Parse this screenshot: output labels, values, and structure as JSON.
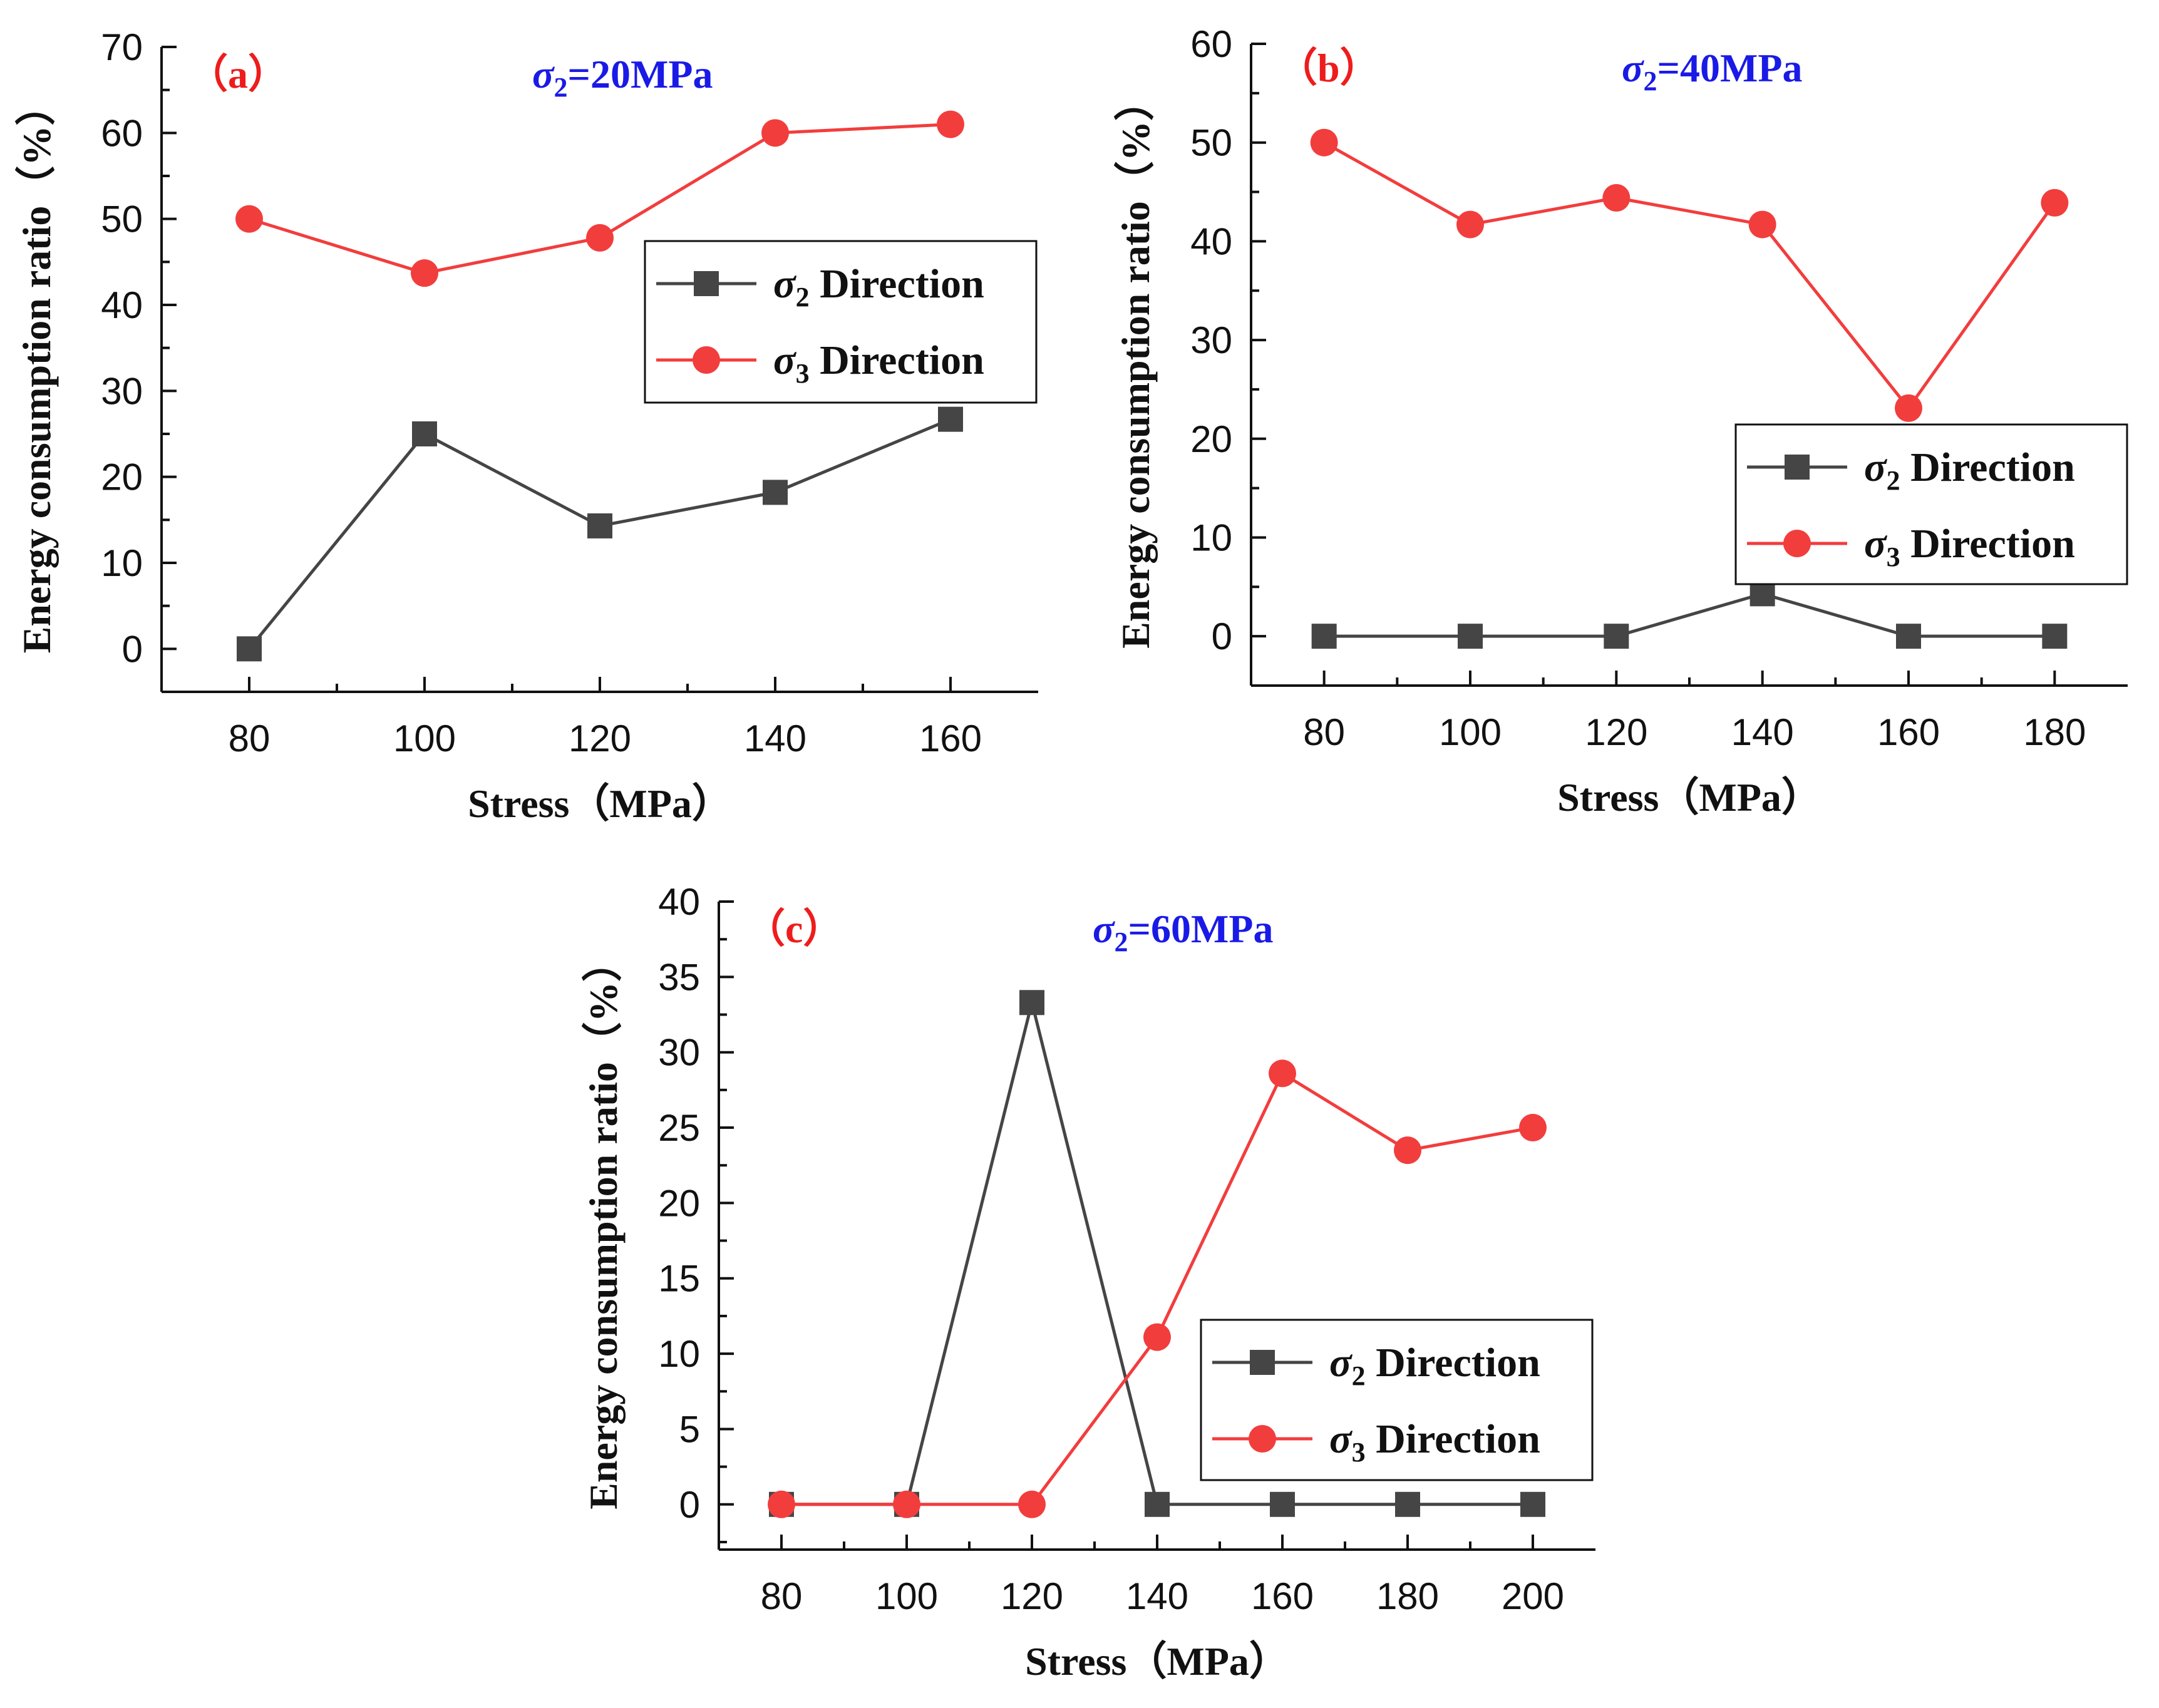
{
  "colors": {
    "s2": "#454545",
    "s3": "#f23d3d",
    "panel_label": "#ee1c1c",
    "condition": "#1a1ae6",
    "axis": "#111111"
  },
  "chart_data": [
    {
      "type": "line",
      "panel_label": "（a）",
      "condition": {
        "symbol": "σ",
        "sub": "2",
        "rest": "=20MPa"
      },
      "xlabel": "Stress（MPa）",
      "ylabel": "Energy consumption ratio（%）",
      "xlim": [
        70,
        170
      ],
      "ylim": [
        -5,
        70
      ],
      "xticks": [
        80,
        100,
        120,
        140,
        160
      ],
      "yticks": [
        0,
        10,
        20,
        30,
        40,
        50,
        60,
        70
      ],
      "legend_position": "center-right",
      "series": [
        {
          "name": "σ2 Direction",
          "symbol": "σ",
          "sub": "2",
          "label": "Direction",
          "marker": "square",
          "color_key": "s2",
          "x": [
            80,
            100,
            120,
            140,
            160
          ],
          "values": [
            0,
            25,
            14.3,
            18.2,
            26.7
          ]
        },
        {
          "name": "σ3 Direction",
          "symbol": "σ",
          "sub": "3",
          "label": "Direction",
          "marker": "circle",
          "color_key": "s3",
          "x": [
            80,
            100,
            120,
            140,
            160
          ],
          "values": [
            50,
            43.7,
            47.8,
            60,
            61
          ]
        }
      ]
    },
    {
      "type": "line",
      "panel_label": "（b）",
      "condition": {
        "symbol": "σ",
        "sub": "2",
        "rest": "=40MPa"
      },
      "xlabel": "Stress（MPa）",
      "ylabel": "Energy consumption ratio（%）",
      "xlim": [
        70,
        190
      ],
      "ylim": [
        -5,
        60
      ],
      "xticks": [
        80,
        100,
        120,
        140,
        160,
        180
      ],
      "yticks": [
        0,
        10,
        20,
        30,
        40,
        50,
        60
      ],
      "legend_position": "center-right",
      "series": [
        {
          "name": "σ2 Direction",
          "symbol": "σ",
          "sub": "2",
          "label": "Direction",
          "marker": "square",
          "color_key": "s2",
          "x": [
            80,
            100,
            120,
            140,
            160,
            180
          ],
          "values": [
            0,
            0,
            0,
            4.3,
            0,
            0
          ]
        },
        {
          "name": "σ3 Direction",
          "symbol": "σ",
          "sub": "3",
          "label": "Direction",
          "marker": "circle",
          "color_key": "s3",
          "x": [
            80,
            100,
            120,
            140,
            160,
            180
          ],
          "values": [
            50,
            41.7,
            44.4,
            41.7,
            23.1,
            43.9
          ]
        }
      ]
    },
    {
      "type": "line",
      "panel_label": "（c）",
      "condition": {
        "symbol": "σ",
        "sub": "2",
        "rest": "=60MPa"
      },
      "xlabel": "Stress（MPa）",
      "ylabel": "Energy consumption ratio（%）",
      "xlim": [
        70,
        210
      ],
      "ylim": [
        -3,
        40
      ],
      "xticks": [
        80,
        100,
        120,
        140,
        160,
        180,
        200
      ],
      "yticks": [
        0,
        5,
        10,
        15,
        20,
        25,
        30,
        35,
        40
      ],
      "legend_position": "lower-right",
      "series": [
        {
          "name": "σ2 Direction",
          "symbol": "σ",
          "sub": "2",
          "label": "Direction",
          "marker": "square",
          "color_key": "s2",
          "x": [
            80,
            100,
            120,
            140,
            160,
            180,
            200
          ],
          "values": [
            0,
            0,
            33.3,
            0,
            0,
            0,
            0
          ]
        },
        {
          "name": "σ3 Direction",
          "symbol": "σ",
          "sub": "3",
          "label": "Direction",
          "marker": "circle",
          "color_key": "s3",
          "x": [
            80,
            100,
            120,
            140,
            160,
            180,
            200
          ],
          "values": [
            0,
            0,
            0,
            11.1,
            28.6,
            23.5,
            25
          ]
        }
      ]
    }
  ]
}
